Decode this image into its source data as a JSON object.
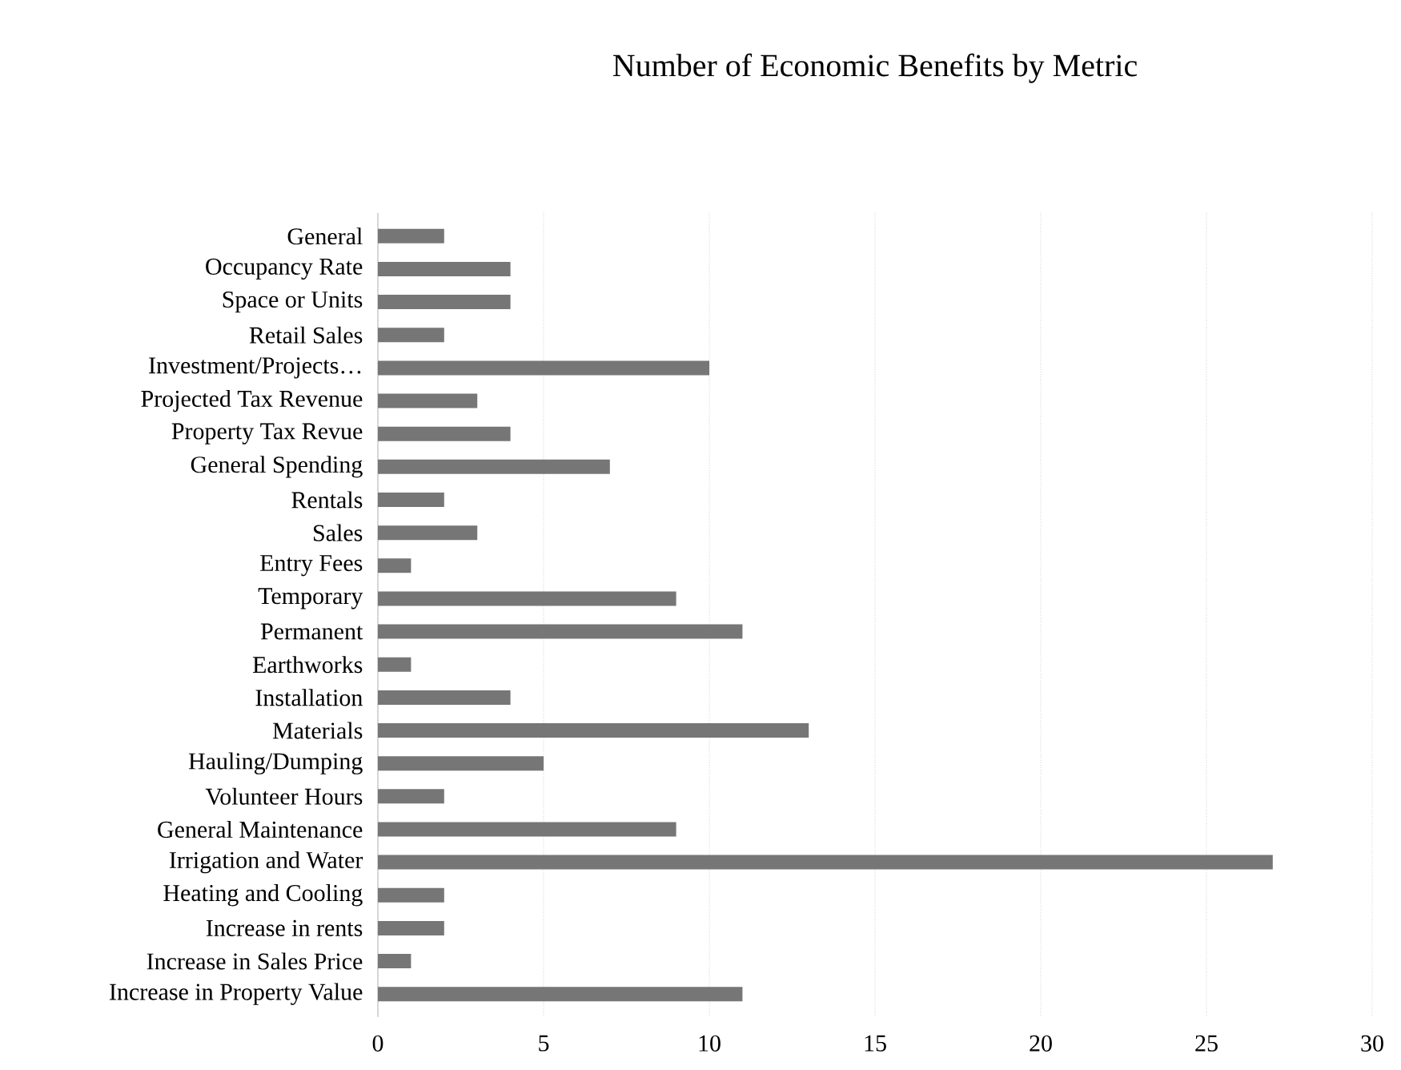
{
  "chart_data": {
    "type": "bar",
    "orientation": "horizontal",
    "title": "Number of Economic Benefits by Metric",
    "categories": [
      "General",
      "Occupancy Rate",
      "Space or Units",
      "Retail Sales",
      "Investment/Projects…",
      "Projected Tax Revenue",
      "Property Tax Revue",
      "General Spending",
      "Rentals",
      "Sales",
      "Entry Fees",
      "Temporary",
      "Permanent",
      "Earthworks",
      "Installation",
      "Materials",
      "Hauling/Dumping",
      "Volunteer Hours",
      "General Maintenance",
      "Irrigation and Water",
      "Heating and Cooling",
      "Increase in rents",
      "Increase in Sales Price",
      "Increase in Property Value"
    ],
    "values": [
      2,
      4,
      4,
      2,
      10,
      3,
      4,
      7,
      2,
      3,
      1,
      9,
      11,
      1,
      4,
      13,
      5,
      2,
      9,
      27,
      2,
      2,
      1,
      11
    ],
    "color": "#767676",
    "xlim": [
      0,
      30
    ],
    "xticks": [
      0,
      5,
      10,
      15,
      20,
      25,
      30
    ],
    "grid": "x"
  }
}
